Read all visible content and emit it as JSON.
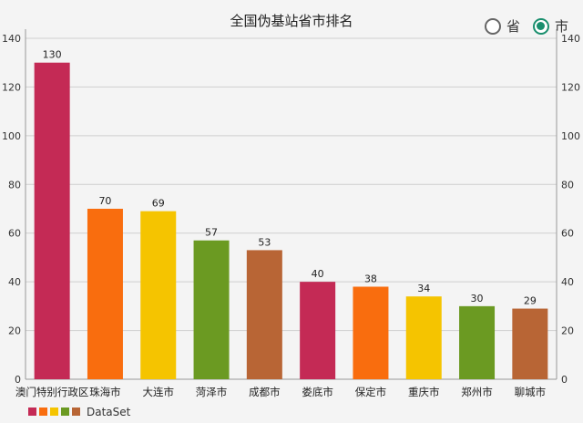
{
  "radio": {
    "options": [
      {
        "label": "省",
        "checked": false
      },
      {
        "label": "市",
        "checked": true
      }
    ]
  },
  "chart_data": {
    "type": "bar",
    "title": "全国伪基站省市排名",
    "categories": [
      "澳门特别行政区",
      "珠海市",
      "大连市",
      "菏泽市",
      "成都市",
      "娄底市",
      "保定市",
      "重庆市",
      "郑州市",
      "聊城市"
    ],
    "values": [
      130,
      70,
      69,
      57,
      53,
      40,
      38,
      34,
      30,
      29
    ],
    "colors": [
      "#c42a55",
      "#f96d0e",
      "#f5c400",
      "#6b9a22",
      "#b86535",
      "#c42a55",
      "#f96d0e",
      "#f5c400",
      "#6b9a22",
      "#b86535"
    ],
    "ylim": [
      0,
      140
    ],
    "yticks": [
      0,
      20,
      40,
      60,
      80,
      100,
      120,
      140
    ],
    "grid": true,
    "legend": {
      "position": "bottom-left",
      "label": "DataSet",
      "swatches": [
        "#c42a55",
        "#f96d0e",
        "#f5c400",
        "#6b9a22",
        "#b86535"
      ]
    }
  }
}
